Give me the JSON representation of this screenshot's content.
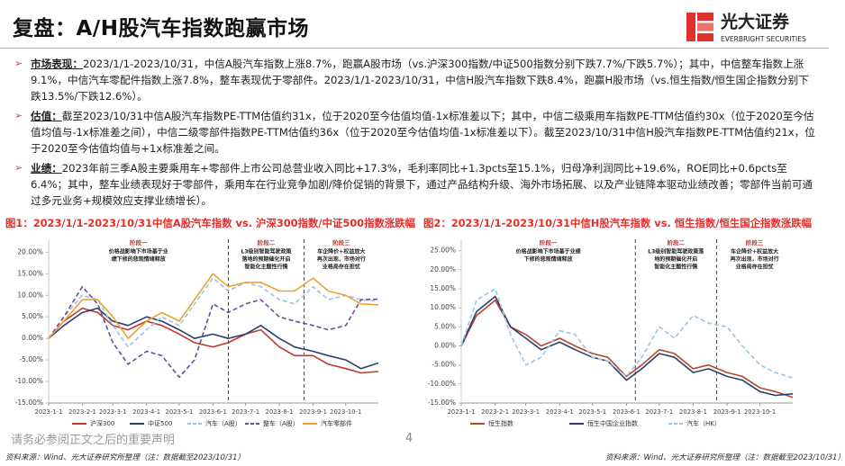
{
  "header": {
    "title": "复盘：A/H股汽车指数跑赢市场",
    "logo": {
      "name": "光大证券",
      "name_en": "EVERBRIGHT SECURITIES"
    }
  },
  "bullets": [
    {
      "label": "市场表现：",
      "text": "2023/1/1-2023/10/31，中信A股汽车指数上涨8.7%，跑赢A股市场（vs.沪深300指数/中证500指数分别下跌7.7%/下跌5.7%）；其中，中信整车指数上涨9.1%，中信汽车零配件指数上涨7.8%，整车表现优于零部件。2023/1/1-2023/10/31，中信H股汽车指数下跌8.4%，跑赢H股市场（vs.恒生指数/恒生国企指数分别下跌13.5%/下跌12.6%）。"
    },
    {
      "label": "估值：",
      "text": "截至2023/10/31中信A股汽车指数PE-TTM估值约31x，位于2020至今估值均值-1x标准差以下；其中，中信二级乘用车指数PE-TTM估值约30x（位于2020至今估值均值与-1x标准差之间），中信二级零部件指数PE-TTM估值约36x（位于2020至今估值均值-1x标准差以下）。截至2023/10/31中信H股汽车指数PE-TTM估值约21x，位于2020至今估值均值与+1x标准差之间。"
    },
    {
      "label": "业绩：",
      "text": "2023年前三季A股主要乘用车+零部件上市公司总营业收入同比+17.3%，毛利率同比+1.3pcts至15.1%，归母净利润同比+19.6%，ROE同比+0.6pcts至6.4%；其中，整车业绩表现好于零部件，乘用车在行业竞争加剧/降价促销的背景下，通过产品结构升级、海外市场拓展、以及产业链降本驱动业绩改善；零部件当前可通过多元业务+规模效应支撑业绩增长）。"
    }
  ],
  "chart_data": [
    {
      "type": "line",
      "title": "图1：2023/1/1-2023/10/31中信A股汽车指数 vs. 沪深300指数/中证500指数涨跌幅",
      "x": [
        "2023-1-1",
        "2023-1-15",
        "2023-2-1",
        "2023-2-15",
        "2023-3-1",
        "2023-3-15",
        "2023-4-1",
        "2023-4-15",
        "2023-5-1",
        "2023-5-15",
        "2023-6-1",
        "2023-6-15",
        "2023-7-1",
        "2023-7-15",
        "2023-8-1",
        "2023-8-15",
        "2023-9-1",
        "2023-9-15",
        "2023-10-1",
        "2023-10-15",
        "2023-10-31"
      ],
      "xlim": [
        "2023-1-1",
        "2023-10-31"
      ],
      "xticks": [
        "2023-1-1",
        "2023-2-1",
        "2023-3-1",
        "2023-4-1",
        "2023-5-1",
        "2023-6-1",
        "2023-7-1",
        "2023-8-1",
        "2023-9-1",
        "2023-10-1"
      ],
      "ylim": [
        -15,
        23
      ],
      "yticks": [
        {
          "value": 20,
          "label": "20.00%"
        },
        {
          "value": 15,
          "label": "15.00%"
        },
        {
          "value": 10,
          "label": "10.00%"
        },
        {
          "value": 5,
          "label": "5.00%"
        },
        {
          "value": 0,
          "label": "0.00%"
        },
        {
          "value": -5,
          "label": "-5.00%"
        },
        {
          "value": -10,
          "label": "-10.00%"
        },
        {
          "value": -15,
          "label": "-15.00%"
        }
      ],
      "annotations": [
        {
          "label": "阶段一",
          "text": [
            "价格战影响下市场基于业",
            "绩下修的悲观情绪释放"
          ]
        },
        {
          "label": "阶段二",
          "text": [
            "L3级别智能驾驶政策",
            "落地的预期催化开启",
            "智能化主题性行情"
          ]
        },
        {
          "label": "阶段三",
          "text": [
            "车企降价+权益放大",
            "再次出现，市场对行",
            "业格局存在担忧"
          ]
        }
      ],
      "series": [
        {
          "name": "沪深300",
          "color": "#c0392b",
          "style": "solid",
          "values": [
            0,
            4,
            7,
            6,
            3,
            2,
            4,
            3,
            1,
            -1,
            -2,
            -1,
            1,
            2,
            -2,
            -4,
            -4,
            -6,
            -7,
            -8,
            -7.7
          ]
        },
        {
          "name": "中证500",
          "color": "#2c3e6b",
          "style": "solid",
          "values": [
            0,
            3,
            6,
            7,
            4,
            3,
            5,
            4,
            2,
            0,
            1,
            0,
            1,
            3,
            0,
            -2,
            -3,
            -4,
            -5,
            -7,
            -5.7
          ]
        },
        {
          "name": "汽车（A股）",
          "color": "#9cc3e0",
          "style": "dashed",
          "values": [
            0,
            5,
            10,
            9,
            3,
            -2,
            2,
            5,
            3,
            8,
            14,
            11,
            13,
            12,
            9,
            8,
            12,
            9,
            10,
            9,
            8.7
          ]
        },
        {
          "name": "整车（A股）",
          "color": "#6a4c9c",
          "style": "dashed",
          "values": [
            0,
            5,
            12,
            8,
            -1,
            -6,
            -3,
            -4,
            -9,
            -5,
            8,
            6,
            8,
            9,
            5,
            4,
            3,
            2,
            3,
            9,
            9.1
          ]
        },
        {
          "name": "汽车零部件",
          "color": "#f0a030",
          "style": "solid",
          "values": [
            0,
            4,
            9,
            9,
            5,
            0,
            4,
            6,
            4,
            9,
            15,
            12,
            13,
            13,
            11,
            11,
            14,
            11,
            10,
            8,
            7.8
          ]
        }
      ]
    },
    {
      "type": "line",
      "title": "图2：2023/1/1-2023/10/31中信H股汽车指数 vs. 恒生指数/恒生国企指数涨跌幅",
      "x": [
        "2023-1-1",
        "2023-1-15",
        "2023-2-1",
        "2023-2-15",
        "2023-3-1",
        "2023-3-15",
        "2023-4-1",
        "2023-4-15",
        "2023-5-1",
        "2023-5-15",
        "2023-6-1",
        "2023-6-15",
        "2023-7-1",
        "2023-7-15",
        "2023-8-1",
        "2023-8-15",
        "2023-9-1",
        "2023-9-15",
        "2023-10-1",
        "2023-10-15",
        "2023-10-31"
      ],
      "xlim": [
        "2023-1-1",
        "2023-10-31"
      ],
      "xticks": [
        "2023-1-1",
        "2023-2-1",
        "2023-3-1",
        "2023-4-1",
        "2023-5-1",
        "2023-6-1",
        "2023-7-1",
        "2023-8-1",
        "2023-9-1",
        "2023-10-1"
      ],
      "ylim": [
        -15,
        28
      ],
      "yticks": [
        {
          "value": 25,
          "label": "25.00%"
        },
        {
          "value": 20,
          "label": "20.00%"
        },
        {
          "value": 15,
          "label": "15.00%"
        },
        {
          "value": 10,
          "label": "10.00%"
        },
        {
          "value": 5,
          "label": "5.00%"
        },
        {
          "value": 0,
          "label": "0.00%"
        },
        {
          "value": -5,
          "label": "-5.00%"
        },
        {
          "value": -10,
          "label": "-10.00%"
        },
        {
          "value": -15,
          "label": "-15.00%"
        }
      ],
      "annotations": [
        {
          "label": "阶段一",
          "text": [
            "价格战影响下市场基于业绩",
            "下修的悲观情绪释放"
          ]
        },
        {
          "label": "阶段二",
          "text": [
            "L3级别智能驾驶政策落",
            "地的预期催化开启",
            "智能化主题性行情"
          ]
        },
        {
          "label": "阶段三",
          "text": [
            "车企降价+权益放大",
            "再次出现，市场对行",
            "业格局存在担忧"
          ]
        }
      ],
      "series": [
        {
          "name": "恒生指数",
          "color": "#b5462a",
          "style": "solid",
          "values": [
            0,
            8,
            12,
            5,
            3,
            0,
            2,
            0,
            -2,
            -3,
            -8,
            -5,
            -1,
            -2,
            -6,
            -5,
            -7,
            -8,
            -11,
            -12,
            -13.5
          ]
        },
        {
          "name": "恒生中国企业指数",
          "color": "#2c3e6b",
          "style": "solid",
          "values": [
            0,
            9,
            13,
            5,
            2,
            -1,
            1,
            -1,
            -3,
            -4,
            -9,
            -6,
            -2,
            -3,
            -7,
            -6,
            -8,
            -9,
            -12,
            -13,
            -12.6
          ]
        },
        {
          "name": "汽车（HK）",
          "color": "#9cc3e0",
          "style": "dashed",
          "values": [
            0,
            12,
            15,
            3,
            -5,
            -3,
            4,
            3,
            -3,
            -4,
            -8,
            -3,
            5,
            2,
            8,
            6,
            5,
            0,
            -5,
            -7,
            -8.4
          ]
        }
      ]
    }
  ],
  "footer": {
    "notice": "请务必参阅正文之后的重要声明",
    "page": 4,
    "sources": [
      "资料来源：Wind、光大证券研究所整理（注：数据截至2023/10/31）",
      "资料来源：Wind、光大证券研究所整理（注：数据截至2023/10/31）"
    ]
  }
}
